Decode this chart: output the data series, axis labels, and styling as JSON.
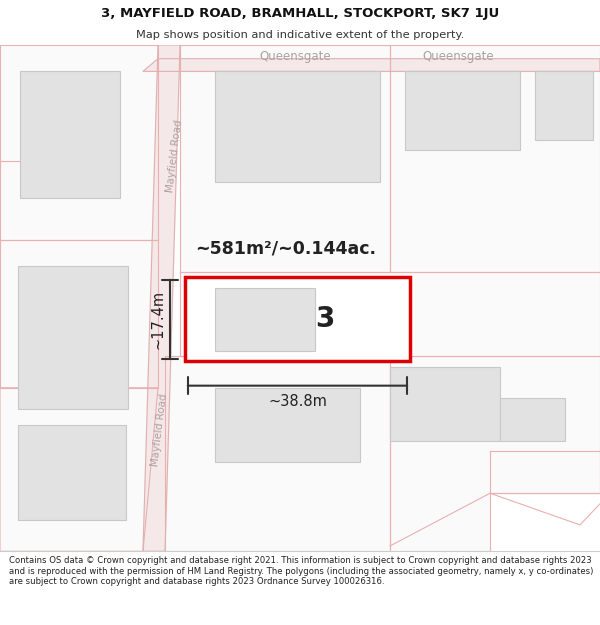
{
  "title_line1": "3, MAYFIELD ROAD, BRAMHALL, STOCKPORT, SK7 1JU",
  "title_line2": "Map shows position and indicative extent of the property.",
  "footer_text": "Contains OS data © Crown copyright and database right 2021. This information is subject to Crown copyright and database rights 2023 and is reproduced with the permission of HM Land Registry. The polygons (including the associated geometry, namely x, y co-ordinates) are subject to Crown copyright and database rights 2023 Ordnance Survey 100026316.",
  "area_text": "~581m²/~0.144ac.",
  "width_text": "~38.8m",
  "height_text": "~17.4m",
  "property_number": "3",
  "queensgate_label": "Queensgate",
  "mayfield_road_label": "Mayfield Road",
  "road_fill": "#f5e8e8",
  "road_outline": "#e0b0b0",
  "plot_fill": "#fafafa",
  "plot_outline": "#e8b0b0",
  "bldg_fill": "#e2e2e2",
  "bldg_outline": "#c8c8c8",
  "highlight_fill": "#ffffff",
  "highlight_outline": "#dd0000",
  "annotation_color": "#222222",
  "road_label_color": "#b0a0a0",
  "map_bg": "#ffffff"
}
